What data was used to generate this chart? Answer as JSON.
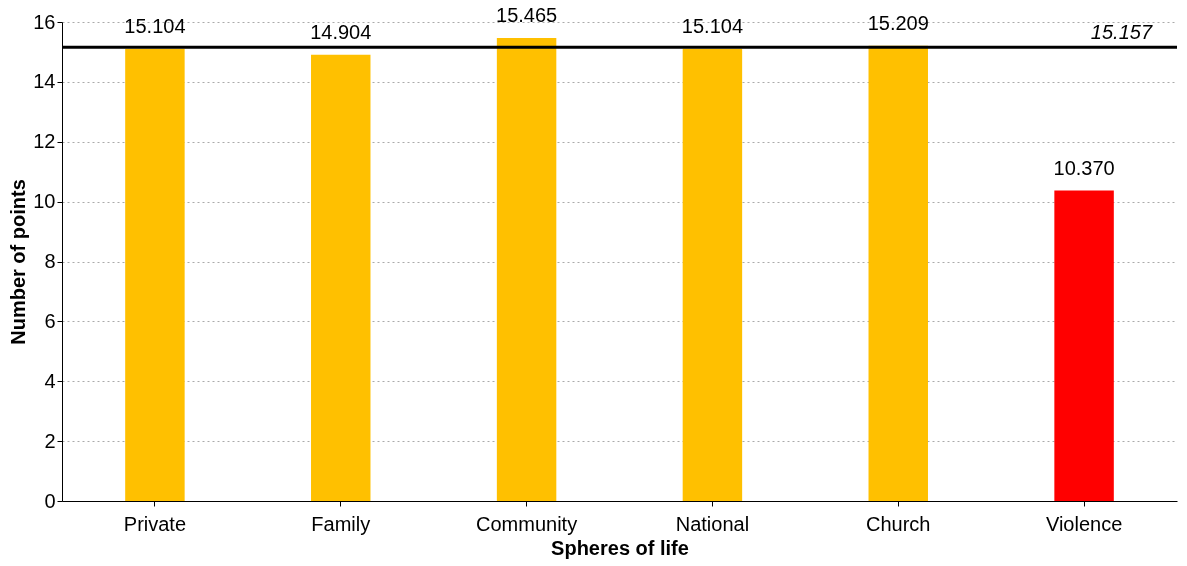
{
  "chart_data": {
    "type": "bar",
    "xlabel": "Spheres of life",
    "ylabel": "Number of points",
    "categories": [
      "Private",
      "Family",
      "Community",
      "National",
      "Church",
      "Violence"
    ],
    "values": [
      15.104,
      14.904,
      15.465,
      15.104,
      15.209,
      10.37
    ],
    "colors": [
      "#ffc000",
      "#ffc000",
      "#ffc000",
      "#ffc000",
      "#ffc000",
      "#ff0000"
    ],
    "value_labels": [
      "15.104",
      "14.904",
      "15.465",
      "15.104",
      "15.209",
      "10.370"
    ],
    "ylim": [
      0,
      16
    ],
    "yticks": [
      0,
      2,
      4,
      6,
      8,
      10,
      12,
      14,
      16
    ],
    "grid": "y",
    "ref_lines": [
      {
        "axis": "y",
        "value": 15.157,
        "label": "15.157",
        "color": "#000000"
      }
    ]
  }
}
